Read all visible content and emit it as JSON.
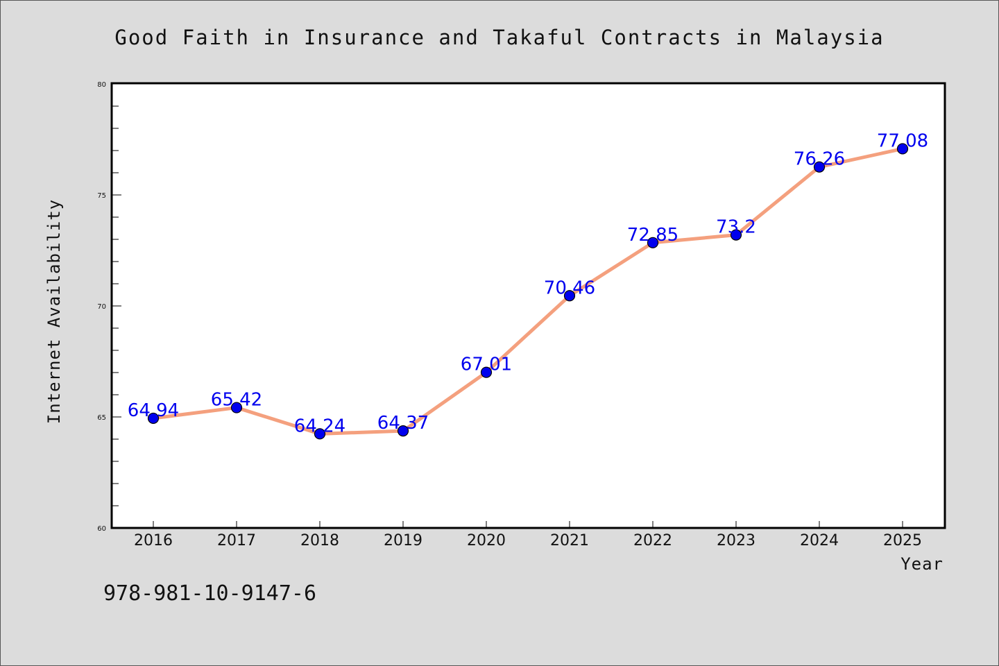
{
  "chart_data": {
    "type": "line",
    "title": "Good Faith in Insurance and Takaful Contracts in Malaysia",
    "xlabel": "Year",
    "ylabel": "Internet Availability",
    "categories": [
      "2016",
      "2017",
      "2018",
      "2019",
      "2020",
      "2021",
      "2022",
      "2023",
      "2024",
      "2025"
    ],
    "values": [
      64.94,
      65.42,
      64.24,
      64.37,
      67.01,
      70.46,
      72.85,
      73.2,
      76.26,
      77.08
    ],
    "data_labels": [
      "64.94",
      "65.42",
      "64.24",
      "64.37",
      "67.01",
      "70.46",
      "72.85",
      "73.2",
      "76.26",
      "77.08"
    ],
    "yticks": [
      "60",
      "65",
      "70",
      "75",
      "80"
    ],
    "ylim": [
      60,
      80
    ],
    "grid": false,
    "line_color": "#f4a07e",
    "marker_color": "#0000ee",
    "label_color": "#0000ee",
    "background_color": "#dcdcdc",
    "plot_background": "#ffffff"
  },
  "footer": {
    "isbn": "978-981-10-9147-6"
  }
}
